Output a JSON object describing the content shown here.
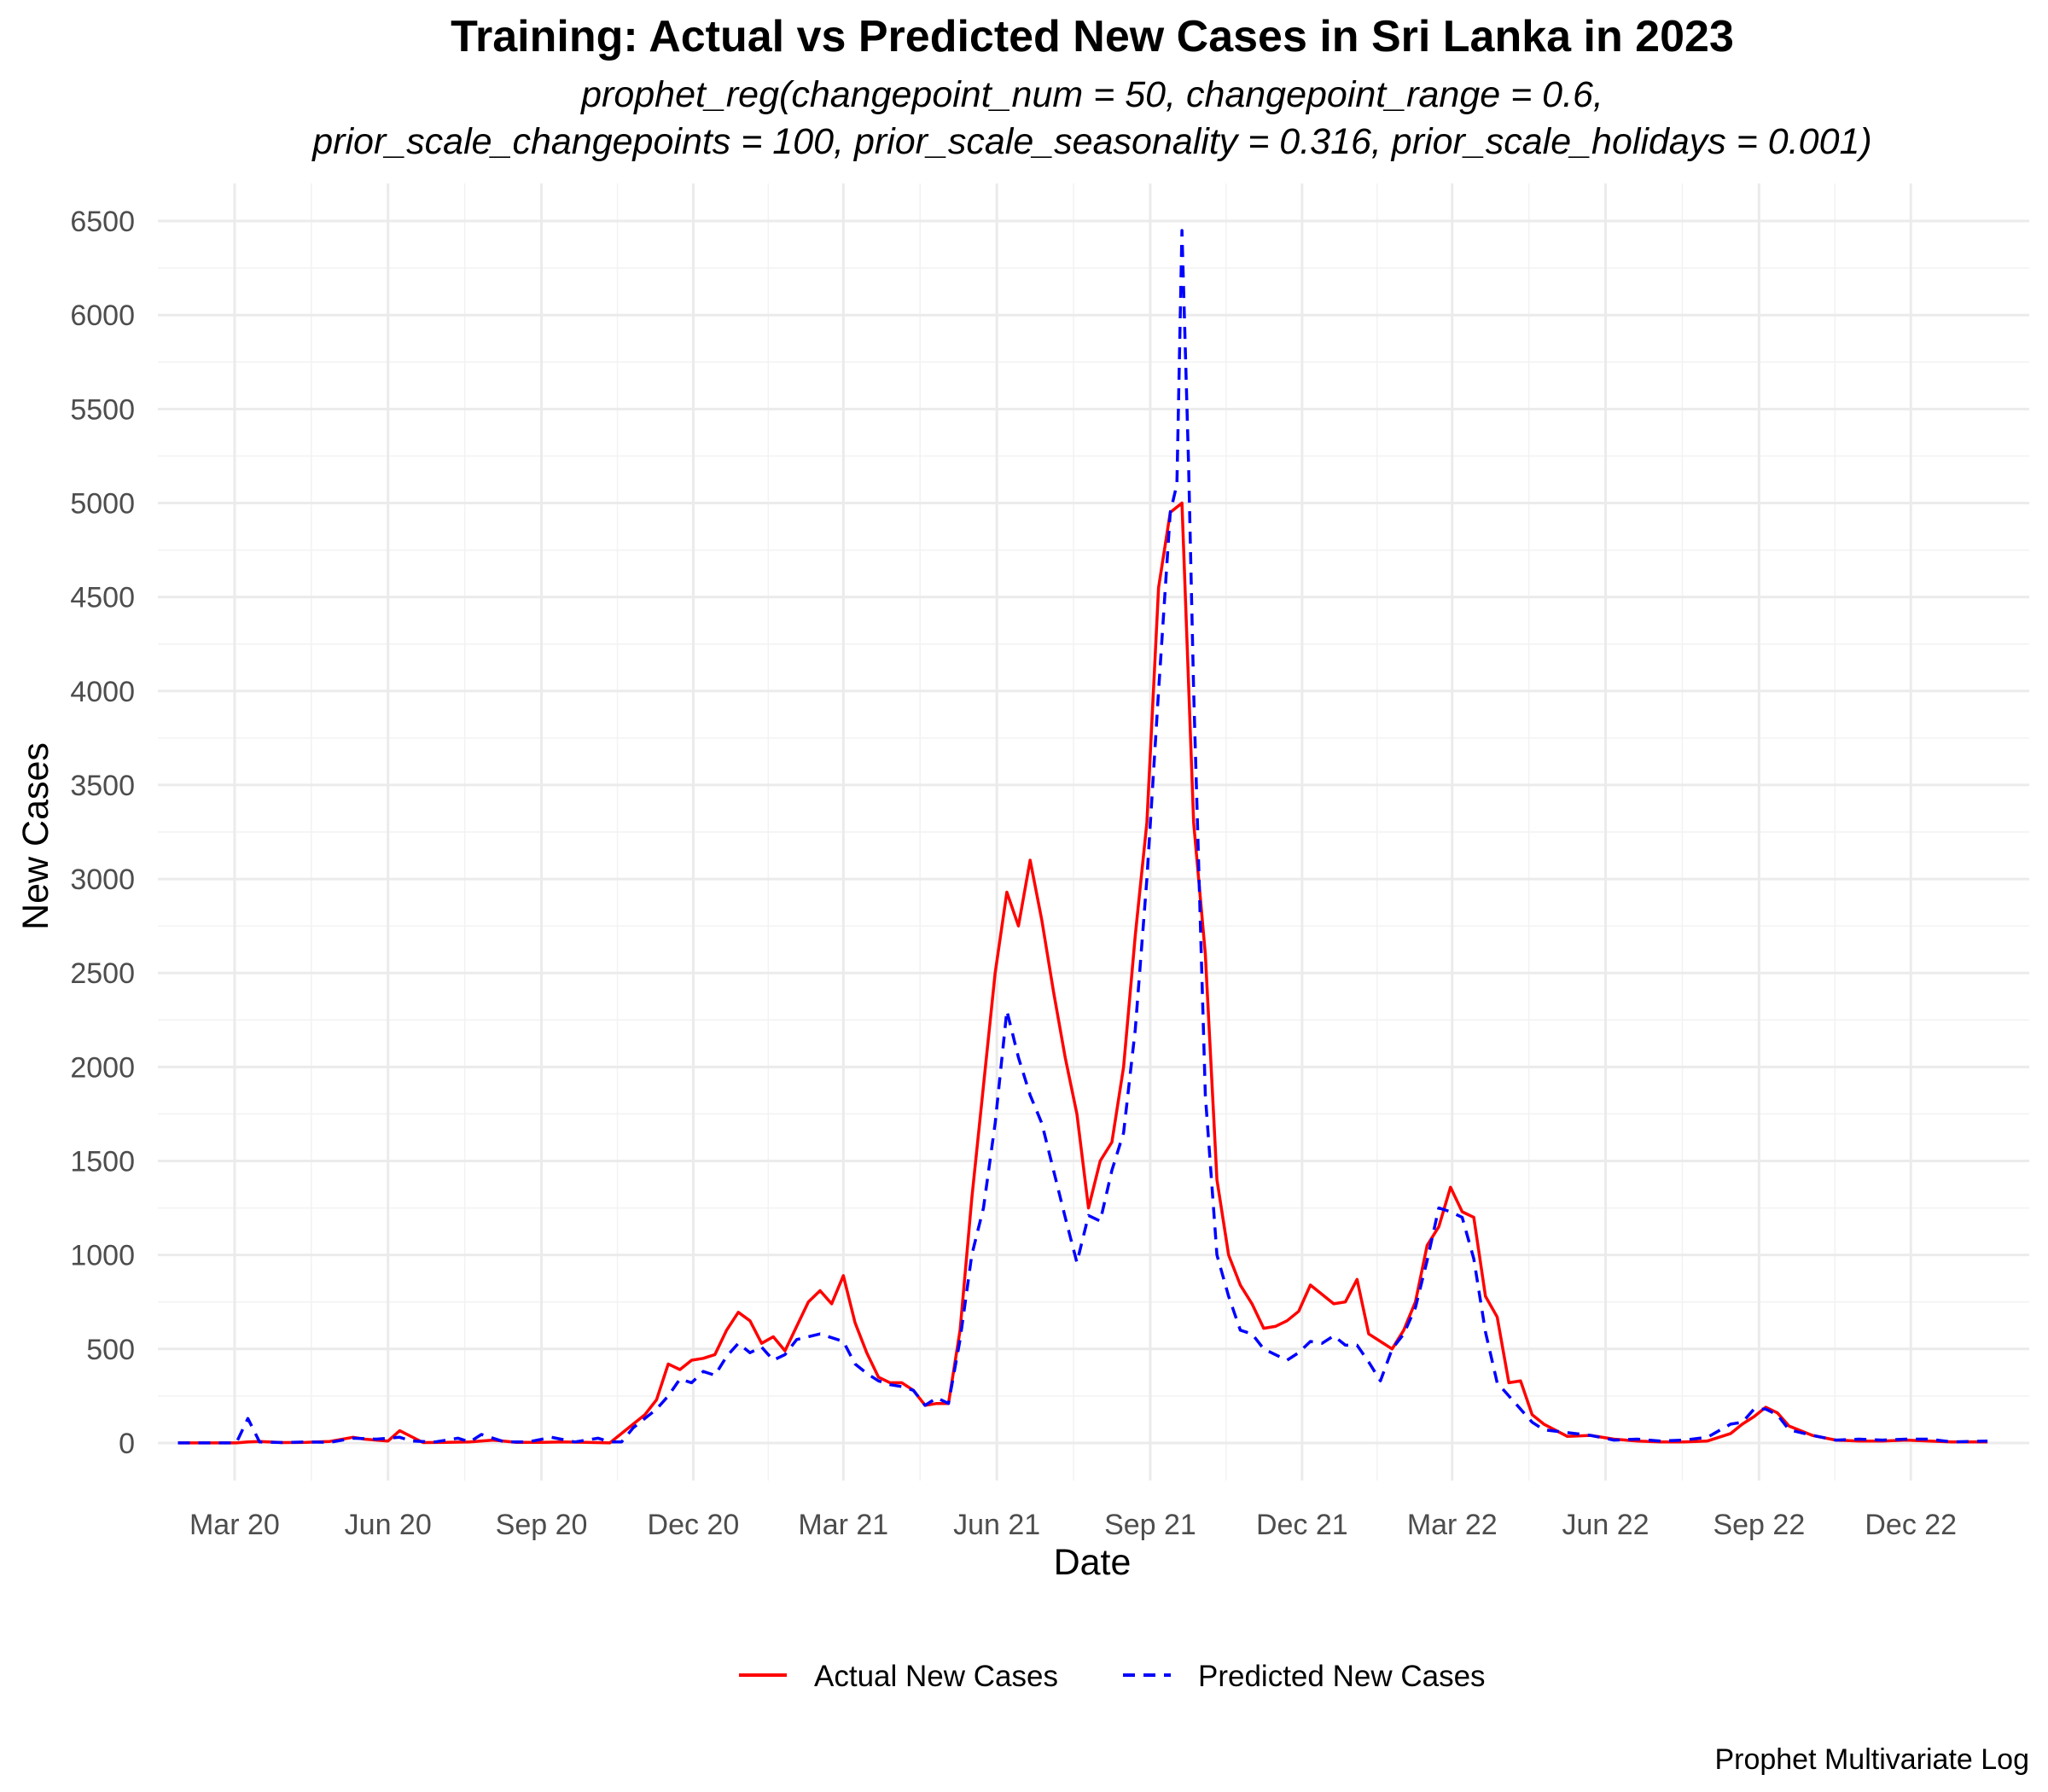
{
  "chart_data": {
    "type": "line",
    "title": "Training: Actual vs Predicted New Cases in Sri Lanka in 2023",
    "subtitle_lines": [
      "prophet_reg(changepoint_num = 50, changepoint_range = 0.6,",
      "prior_scale_changepoints = 100, prior_scale_seasonality = 0.316, prior_scale_holidays = 0.001)"
    ],
    "xlabel": "Date",
    "ylabel": "New Cases",
    "caption": "Prophet Multivariate Log",
    "ylim": [
      -200,
      6700
    ],
    "y_ticks": [
      0,
      500,
      1000,
      1500,
      2000,
      2500,
      3000,
      3500,
      4000,
      4500,
      5000,
      5500,
      6000,
      6500
    ],
    "x_ticks": [
      {
        "date": "2020-03-01",
        "label": "Mar 20"
      },
      {
        "date": "2020-06-01",
        "label": "Jun 20"
      },
      {
        "date": "2020-09-01",
        "label": "Sep 20"
      },
      {
        "date": "2020-12-01",
        "label": "Dec 20"
      },
      {
        "date": "2021-03-01",
        "label": "Mar 21"
      },
      {
        "date": "2021-06-01",
        "label": "Jun 21"
      },
      {
        "date": "2021-09-01",
        "label": "Sep 21"
      },
      {
        "date": "2021-12-01",
        "label": "Dec 21"
      },
      {
        "date": "2022-03-01",
        "label": "Mar 22"
      },
      {
        "date": "2022-06-01",
        "label": "Jun 22"
      },
      {
        "date": "2022-09-01",
        "label": "Sep 22"
      },
      {
        "date": "2022-12-01",
        "label": "Dec 22"
      }
    ],
    "xlim": [
      "2020-01-15",
      "2023-02-10"
    ],
    "grid": true,
    "legend_position": "bottom",
    "series": [
      {
        "name": "Actual New Cases",
        "color": "#ff0000",
        "dash": "solid",
        "points": [
          [
            "2020-01-27",
            0
          ],
          [
            "2020-03-02",
            0
          ],
          [
            "2020-03-09",
            5
          ],
          [
            "2020-03-16",
            8
          ],
          [
            "2020-03-30",
            2
          ],
          [
            "2020-04-13",
            3
          ],
          [
            "2020-04-27",
            8
          ],
          [
            "2020-05-11",
            30
          ],
          [
            "2020-05-18",
            20
          ],
          [
            "2020-05-25",
            15
          ],
          [
            "2020-06-01",
            10
          ],
          [
            "2020-06-08",
            65
          ],
          [
            "2020-06-22",
            2
          ],
          [
            "2020-07-06",
            3
          ],
          [
            "2020-07-20",
            5
          ],
          [
            "2020-08-03",
            15
          ],
          [
            "2020-08-17",
            3
          ],
          [
            "2020-08-31",
            3
          ],
          [
            "2020-09-14",
            5
          ],
          [
            "2020-09-28",
            3
          ],
          [
            "2020-10-12",
            0
          ],
          [
            "2020-10-26",
            100
          ],
          [
            "2020-11-02",
            150
          ],
          [
            "2020-11-09",
            230
          ],
          [
            "2020-11-16",
            420
          ],
          [
            "2020-11-23",
            390
          ],
          [
            "2020-11-30",
            440
          ],
          [
            "2020-12-07",
            450
          ],
          [
            "2020-12-14",
            470
          ],
          [
            "2020-12-21",
            600
          ],
          [
            "2020-12-28",
            695
          ],
          [
            "2021-01-04",
            650
          ],
          [
            "2021-01-11",
            530
          ],
          [
            "2021-01-18",
            565
          ],
          [
            "2021-01-25",
            490
          ],
          [
            "2021-02-01",
            620
          ],
          [
            "2021-02-08",
            750
          ],
          [
            "2021-02-15",
            810
          ],
          [
            "2021-02-22",
            740
          ],
          [
            "2021-03-01",
            890
          ],
          [
            "2021-03-08",
            640
          ],
          [
            "2021-03-15",
            480
          ],
          [
            "2021-03-22",
            350
          ],
          [
            "2021-03-29",
            320
          ],
          [
            "2021-04-05",
            320
          ],
          [
            "2021-04-12",
            280
          ],
          [
            "2021-04-19",
            200
          ],
          [
            "2021-04-26",
            210
          ],
          [
            "2021-05-03",
            210
          ],
          [
            "2021-05-10",
            600
          ],
          [
            "2021-05-17",
            1300
          ],
          [
            "2021-05-24",
            1900
          ],
          [
            "2021-05-31",
            2500
          ],
          [
            "2021-06-07",
            2930
          ],
          [
            "2021-06-14",
            2750
          ],
          [
            "2021-06-21",
            3100
          ],
          [
            "2021-06-28",
            2780
          ],
          [
            "2021-07-05",
            2400
          ],
          [
            "2021-07-12",
            2050
          ],
          [
            "2021-07-19",
            1750
          ],
          [
            "2021-07-26",
            1250
          ],
          [
            "2021-08-02",
            1500
          ],
          [
            "2021-08-09",
            1600
          ],
          [
            "2021-08-16",
            2000
          ],
          [
            "2021-08-23",
            2700
          ],
          [
            "2021-08-30",
            3300
          ],
          [
            "2021-09-06",
            4550
          ],
          [
            "2021-09-13",
            4950
          ],
          [
            "2021-09-20",
            5000
          ],
          [
            "2021-09-27",
            3300
          ],
          [
            "2021-10-04",
            2600
          ],
          [
            "2021-10-11",
            1400
          ],
          [
            "2021-10-18",
            1000
          ],
          [
            "2021-10-25",
            840
          ],
          [
            "2021-11-01",
            740
          ],
          [
            "2021-11-08",
            610
          ],
          [
            "2021-11-15",
            620
          ],
          [
            "2021-11-22",
            650
          ],
          [
            "2021-11-29",
            700
          ],
          [
            "2021-12-06",
            840
          ],
          [
            "2021-12-13",
            790
          ],
          [
            "2021-12-20",
            740
          ],
          [
            "2021-12-27",
            750
          ],
          [
            "2022-01-03",
            870
          ],
          [
            "2022-01-10",
            580
          ],
          [
            "2022-01-17",
            540
          ],
          [
            "2022-01-24",
            500
          ],
          [
            "2022-01-31",
            600
          ],
          [
            "2022-02-07",
            750
          ],
          [
            "2022-02-14",
            1050
          ],
          [
            "2022-02-21",
            1150
          ],
          [
            "2022-02-28",
            1360
          ],
          [
            "2022-03-07",
            1230
          ],
          [
            "2022-03-14",
            1200
          ],
          [
            "2022-03-21",
            780
          ],
          [
            "2022-03-28",
            670
          ],
          [
            "2022-04-04",
            320
          ],
          [
            "2022-04-11",
            330
          ],
          [
            "2022-04-18",
            150
          ],
          [
            "2022-04-25",
            100
          ],
          [
            "2022-05-09",
            35
          ],
          [
            "2022-05-23",
            40
          ],
          [
            "2022-06-06",
            20
          ],
          [
            "2022-06-20",
            10
          ],
          [
            "2022-07-04",
            5
          ],
          [
            "2022-07-18",
            5
          ],
          [
            "2022-08-01",
            10
          ],
          [
            "2022-08-15",
            50
          ],
          [
            "2022-08-22",
            100
          ],
          [
            "2022-08-29",
            140
          ],
          [
            "2022-09-05",
            190
          ],
          [
            "2022-09-12",
            160
          ],
          [
            "2022-09-19",
            90
          ],
          [
            "2022-10-03",
            40
          ],
          [
            "2022-10-17",
            15
          ],
          [
            "2022-10-31",
            10
          ],
          [
            "2022-11-14",
            10
          ],
          [
            "2022-11-28",
            15
          ],
          [
            "2022-12-12",
            10
          ],
          [
            "2022-12-26",
            5
          ],
          [
            "2023-01-16",
            5
          ]
        ]
      },
      {
        "name": "Predicted New Cases",
        "color": "#0000ff",
        "dash": "dashed",
        "points": [
          [
            "2020-01-27",
            0
          ],
          [
            "2020-02-17",
            0
          ],
          [
            "2020-03-02",
            0
          ],
          [
            "2020-03-09",
            130
          ],
          [
            "2020-03-16",
            5
          ],
          [
            "2020-03-30",
            2
          ],
          [
            "2020-04-13",
            5
          ],
          [
            "2020-04-27",
            3
          ],
          [
            "2020-05-11",
            25
          ],
          [
            "2020-05-25",
            20
          ],
          [
            "2020-06-08",
            30
          ],
          [
            "2020-06-15",
            10
          ],
          [
            "2020-06-29",
            5
          ],
          [
            "2020-07-13",
            25
          ],
          [
            "2020-07-20",
            5
          ],
          [
            "2020-07-27",
            45
          ],
          [
            "2020-08-10",
            5
          ],
          [
            "2020-08-24",
            5
          ],
          [
            "2020-09-07",
            30
          ],
          [
            "2020-09-21",
            5
          ],
          [
            "2020-10-05",
            25
          ],
          [
            "2020-10-12",
            5
          ],
          [
            "2020-10-19",
            5
          ],
          [
            "2020-10-26",
            80
          ],
          [
            "2020-11-02",
            130
          ],
          [
            "2020-11-09",
            180
          ],
          [
            "2020-11-16",
            250
          ],
          [
            "2020-11-23",
            340
          ],
          [
            "2020-11-30",
            320
          ],
          [
            "2020-12-07",
            380
          ],
          [
            "2020-12-14",
            360
          ],
          [
            "2020-12-21",
            460
          ],
          [
            "2020-12-28",
            530
          ],
          [
            "2021-01-04",
            480
          ],
          [
            "2021-01-11",
            510
          ],
          [
            "2021-01-18",
            440
          ],
          [
            "2021-01-25",
            470
          ],
          [
            "2021-02-01",
            550
          ],
          [
            "2021-02-15",
            580
          ],
          [
            "2021-02-22",
            560
          ],
          [
            "2021-03-01",
            540
          ],
          [
            "2021-03-08",
            420
          ],
          [
            "2021-03-15",
            370
          ],
          [
            "2021-03-22",
            330
          ],
          [
            "2021-03-29",
            310
          ],
          [
            "2021-04-05",
            300
          ],
          [
            "2021-04-12",
            280
          ],
          [
            "2021-04-19",
            200
          ],
          [
            "2021-04-26",
            240
          ],
          [
            "2021-05-03",
            210
          ],
          [
            "2021-05-10",
            550
          ],
          [
            "2021-05-17",
            1000
          ],
          [
            "2021-05-24",
            1250
          ],
          [
            "2021-05-31",
            1700
          ],
          [
            "2021-06-07",
            2300
          ],
          [
            "2021-06-14",
            2050
          ],
          [
            "2021-06-21",
            1850
          ],
          [
            "2021-06-28",
            1700
          ],
          [
            "2021-07-05",
            1450
          ],
          [
            "2021-07-12",
            1200
          ],
          [
            "2021-07-19",
            960
          ],
          [
            "2021-07-26",
            1210
          ],
          [
            "2021-08-02",
            1180
          ],
          [
            "2021-08-09",
            1450
          ],
          [
            "2021-08-16",
            1650
          ],
          [
            "2021-08-23",
            2200
          ],
          [
            "2021-08-30",
            3000
          ],
          [
            "2021-09-06",
            4000
          ],
          [
            "2021-09-13",
            4950
          ],
          [
            "2021-09-17",
            5100
          ],
          [
            "2021-09-20",
            6450
          ],
          [
            "2021-09-24",
            5200
          ],
          [
            "2021-09-27",
            4000
          ],
          [
            "2021-10-04",
            1850
          ],
          [
            "2021-10-11",
            1000
          ],
          [
            "2021-10-18",
            780
          ],
          [
            "2021-10-25",
            600
          ],
          [
            "2021-11-01",
            580
          ],
          [
            "2021-11-08",
            500
          ],
          [
            "2021-11-15",
            470
          ],
          [
            "2021-11-22",
            440
          ],
          [
            "2021-11-29",
            480
          ],
          [
            "2021-12-06",
            540
          ],
          [
            "2021-12-13",
            530
          ],
          [
            "2021-12-20",
            570
          ],
          [
            "2021-12-27",
            520
          ],
          [
            "2022-01-03",
            520
          ],
          [
            "2022-01-10",
            430
          ],
          [
            "2022-01-17",
            330
          ],
          [
            "2022-01-24",
            500
          ],
          [
            "2022-01-31",
            580
          ],
          [
            "2022-02-07",
            720
          ],
          [
            "2022-02-14",
            970
          ],
          [
            "2022-02-21",
            1250
          ],
          [
            "2022-02-28",
            1230
          ],
          [
            "2022-03-07",
            1200
          ],
          [
            "2022-03-14",
            980
          ],
          [
            "2022-03-21",
            590
          ],
          [
            "2022-03-28",
            320
          ],
          [
            "2022-04-04",
            250
          ],
          [
            "2022-04-11",
            180
          ],
          [
            "2022-04-18",
            110
          ],
          [
            "2022-04-25",
            70
          ],
          [
            "2022-05-09",
            55
          ],
          [
            "2022-05-23",
            40
          ],
          [
            "2022-06-06",
            15
          ],
          [
            "2022-06-20",
            20
          ],
          [
            "2022-07-04",
            10
          ],
          [
            "2022-07-18",
            15
          ],
          [
            "2022-08-01",
            30
          ],
          [
            "2022-08-15",
            100
          ],
          [
            "2022-08-22",
            110
          ],
          [
            "2022-08-29",
            180
          ],
          [
            "2022-09-05",
            180
          ],
          [
            "2022-09-12",
            150
          ],
          [
            "2022-09-19",
            70
          ],
          [
            "2022-10-03",
            40
          ],
          [
            "2022-10-17",
            15
          ],
          [
            "2022-10-31",
            20
          ],
          [
            "2022-11-14",
            15
          ],
          [
            "2022-11-28",
            20
          ],
          [
            "2022-12-12",
            20
          ],
          [
            "2022-12-26",
            5
          ],
          [
            "2023-01-16",
            10
          ]
        ]
      }
    ]
  }
}
